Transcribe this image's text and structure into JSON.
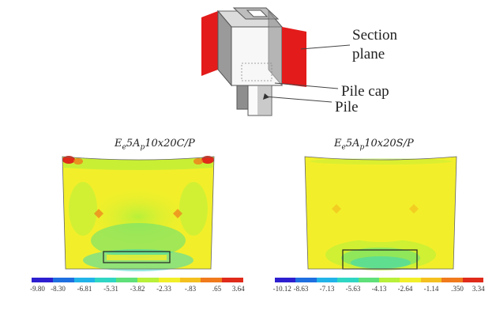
{
  "schematic": {
    "labels": {
      "section_plane_line1": "Section",
      "section_plane_line2": "plane",
      "pile_cap": "Pile cap",
      "pile": "Pile"
    },
    "colors": {
      "section_plane": "#e31b1b",
      "body_fill": "#f4f4f4",
      "edge": "#555555"
    }
  },
  "panels": [
    {
      "title": {
        "base": "E",
        "sub1": "e",
        "mid": "5A",
        "sub2": "p",
        "rest": "10x20C/P"
      },
      "colorbar": {
        "colors": [
          "#2d1fd0",
          "#1f6fe0",
          "#22b3e8",
          "#2fd6c3",
          "#5fe07a",
          "#b8f03a",
          "#f2ef2a",
          "#f4c020",
          "#f07a1c",
          "#e02a1a"
        ],
        "ticks": [
          "-9.80",
          "-8.30",
          "-6.81",
          "-5.31",
          "-3.82",
          "-2.33",
          "-.83",
          ".65",
          "3.64"
        ]
      }
    },
    {
      "title": {
        "base": "E",
        "sub1": "e",
        "mid": "5A",
        "sub2": "p",
        "rest": "10x20S/P"
      },
      "colorbar": {
        "colors": [
          "#2d1fd0",
          "#1f6fe0",
          "#22b3e8",
          "#2fd6c3",
          "#5fe07a",
          "#b8f03a",
          "#f2ef2a",
          "#f4c020",
          "#f07a1c",
          "#e02a1a"
        ],
        "ticks": [
          "-10.12",
          "-8.63",
          "-7.13",
          "-5.63",
          "-4.13",
          "-2.64",
          "-1.14",
          ".350",
          "3.34"
        ]
      }
    }
  ]
}
